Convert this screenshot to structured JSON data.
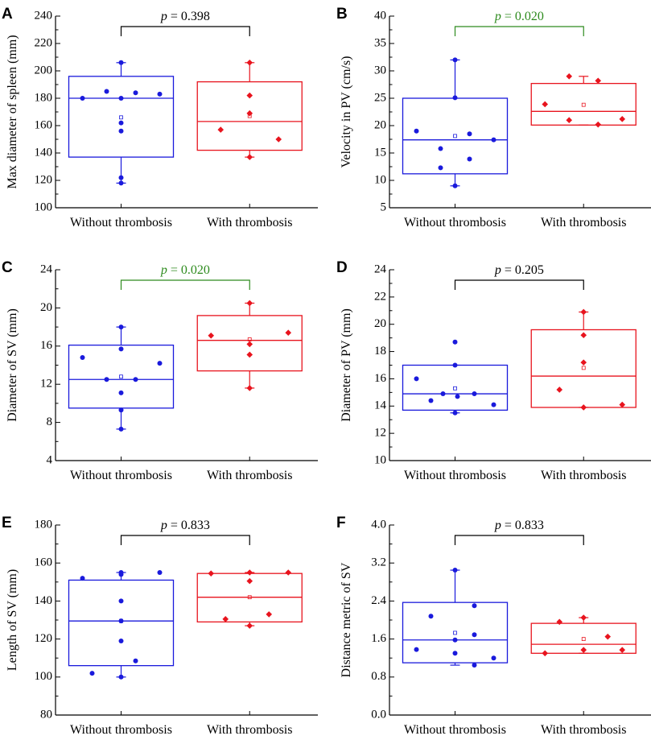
{
  "figure": {
    "colors": {
      "without": "#1a1adc",
      "with": "#e8141e",
      "sig": "#2e8b1e",
      "ns": "#000000"
    },
    "categories": [
      "Without thrombosis",
      "With thrombosis"
    ]
  },
  "chart_data": [
    {
      "panel": "A",
      "type": "box",
      "ylabel": "Max diameter of spleen (mm)",
      "ylim": [
        100,
        240
      ],
      "ticks": [
        100,
        120,
        140,
        160,
        180,
        200,
        220,
        240
      ],
      "p_text": "= 0.398",
      "significant": false,
      "groups": [
        {
          "name": "Without thrombosis",
          "box": [
            137,
            180,
            196
          ],
          "whisker": [
            118,
            206
          ],
          "mean": 166,
          "points": [
            [
              0,
              180
            ],
            [
              -0.8,
              180
            ],
            [
              -0.3,
              185
            ],
            [
              0.3,
              184
            ],
            [
              0.8,
              183
            ],
            [
              0,
              162
            ],
            [
              0,
              156
            ],
            [
              0,
              122
            ],
            [
              0,
              118
            ],
            [
              0,
              206
            ]
          ]
        },
        {
          "name": "With thrombosis",
          "box": [
            142,
            163,
            192
          ],
          "whisker": [
            137,
            206
          ],
          "mean": 167,
          "points": [
            [
              0,
              206
            ],
            [
              0,
              182
            ],
            [
              0,
              169
            ],
            [
              -0.6,
              157
            ],
            [
              0.6,
              150
            ],
            [
              0,
              137
            ]
          ]
        }
      ]
    },
    {
      "panel": "B",
      "type": "box",
      "ylabel": "Velocity in PV (cm/s)",
      "ylim": [
        5,
        40
      ],
      "ticks": [
        5,
        10,
        15,
        20,
        25,
        30,
        35,
        40
      ],
      "p_text": "= 0.020",
      "significant": true,
      "groups": [
        {
          "name": "Without thrombosis",
          "box": [
            11.2,
            17.4,
            25
          ],
          "whisker": [
            9,
            32
          ],
          "mean": 18.1,
          "points": [
            [
              0,
              32
            ],
            [
              0,
              25.1
            ],
            [
              -0.8,
              19
            ],
            [
              0.3,
              18.5
            ],
            [
              0.8,
              17.4
            ],
            [
              -0.3,
              15.8
            ],
            [
              0.3,
              13.9
            ],
            [
              -0.3,
              12.3
            ],
            [
              0,
              9
            ]
          ]
        },
        {
          "name": "With thrombosis",
          "box": [
            20.1,
            22.6,
            27.7
          ],
          "whisker": [
            20.1,
            29
          ],
          "mean": 23.8,
          "points": [
            [
              -0.3,
              29
            ],
            [
              0.3,
              28.2
            ],
            [
              -0.8,
              23.9
            ],
            [
              0.8,
              21.2
            ],
            [
              -0.3,
              21
            ],
            [
              0.3,
              20.2
            ]
          ]
        }
      ]
    },
    {
      "panel": "C",
      "type": "box",
      "ylabel": "Diameter of SV (mm)",
      "ylim": [
        4,
        24
      ],
      "ticks": [
        4,
        8,
        12,
        16,
        20,
        24
      ],
      "p_text": "= 0.020",
      "significant": true,
      "groups": [
        {
          "name": "Without thrombosis",
          "box": [
            9.5,
            12.5,
            16.1
          ],
          "whisker": [
            7.3,
            18
          ],
          "mean": 12.8,
          "points": [
            [
              0,
              18
            ],
            [
              0,
              15.7
            ],
            [
              -0.8,
              14.8
            ],
            [
              0.8,
              14.2
            ],
            [
              -0.3,
              12.5
            ],
            [
              0.3,
              12.5
            ],
            [
              0,
              11.1
            ],
            [
              0,
              9.3
            ],
            [
              0,
              7.3
            ]
          ]
        },
        {
          "name": "With thrombosis",
          "box": [
            13.4,
            16.6,
            19.2
          ],
          "whisker": [
            11.6,
            20.5
          ],
          "mean": 16.7,
          "points": [
            [
              0,
              20.5
            ],
            [
              -0.8,
              17.1
            ],
            [
              0.8,
              17.4
            ],
            [
              0,
              16.2
            ],
            [
              0,
              15.1
            ],
            [
              0,
              11.6
            ]
          ]
        }
      ]
    },
    {
      "panel": "D",
      "type": "box",
      "ylabel": "Diameter of PV (mm)",
      "ylim": [
        10,
        24
      ],
      "ticks": [
        10,
        12,
        14,
        16,
        18,
        20,
        22,
        24
      ],
      "p_text": "= 0.205",
      "significant": false,
      "groups": [
        {
          "name": "Without thrombosis",
          "box": [
            13.7,
            14.9,
            17
          ],
          "whisker": [
            13.5,
            17
          ],
          "mean": 15.3,
          "points": [
            [
              0,
              18.7
            ],
            [
              0,
              17
            ],
            [
              -0.8,
              16
            ],
            [
              -0.5,
              14.4
            ],
            [
              -0.25,
              14.9
            ],
            [
              0.05,
              14.7
            ],
            [
              0.4,
              14.9
            ],
            [
              0.8,
              14.1
            ],
            [
              0,
              13.5
            ]
          ]
        },
        {
          "name": "With thrombosis",
          "box": [
            13.9,
            16.2,
            19.6
          ],
          "whisker": [
            13.9,
            20.9
          ],
          "mean": 16.8,
          "points": [
            [
              0,
              20.9
            ],
            [
              0,
              19.2
            ],
            [
              0,
              17.2
            ],
            [
              -0.5,
              15.2
            ],
            [
              0,
              13.9
            ],
            [
              0.8,
              14.1
            ]
          ]
        }
      ]
    },
    {
      "panel": "E",
      "type": "box",
      "ylabel": "Length of SV (mm)",
      "ylim": [
        80,
        180
      ],
      "ticks": [
        80,
        100,
        120,
        140,
        160,
        180
      ],
      "p_text": "= 0.833",
      "significant": false,
      "groups": [
        {
          "name": "Without thrombosis",
          "box": [
            106,
            129.5,
            151
          ],
          "whisker": [
            100,
            155
          ],
          "mean": 129.5,
          "points": [
            [
              0,
              155
            ],
            [
              0,
              154
            ],
            [
              -0.8,
              152
            ],
            [
              0.8,
              155
            ],
            [
              0,
              140
            ],
            [
              0,
              129.5
            ],
            [
              0,
              119
            ],
            [
              0.3,
              108.5
            ],
            [
              -0.6,
              102
            ],
            [
              0,
              100
            ]
          ]
        },
        {
          "name": "With thrombosis",
          "box": [
            129,
            142,
            154.5
          ],
          "whisker": [
            127,
            155
          ],
          "mean": 142,
          "points": [
            [
              -0.8,
              154.5
            ],
            [
              0,
              155
            ],
            [
              0.8,
              155
            ],
            [
              0,
              150.5
            ],
            [
              -0.5,
              130.5
            ],
            [
              0.4,
              133
            ],
            [
              0,
              127
            ]
          ]
        }
      ]
    },
    {
      "panel": "F",
      "type": "box",
      "ylabel": "Distance metric of SV",
      "ylim": [
        0,
        4
      ],
      "ticks": [
        0.0,
        0.8,
        1.6,
        2.4,
        3.2,
        4.0
      ],
      "p_text": "= 0.833",
      "significant": false,
      "groups": [
        {
          "name": "Without thrombosis",
          "box": [
            1.1,
            1.58,
            2.37
          ],
          "whisker": [
            1.05,
            3.05
          ],
          "mean": 1.73,
          "points": [
            [
              0,
              3.05
            ],
            [
              0.4,
              2.3
            ],
            [
              -0.5,
              2.08
            ],
            [
              0.4,
              1.69
            ],
            [
              0,
              1.58
            ],
            [
              -0.8,
              1.38
            ],
            [
              0,
              1.3
            ],
            [
              0.8,
              1.2
            ],
            [
              0.4,
              1.05
            ]
          ]
        },
        {
          "name": "With thrombosis",
          "box": [
            1.3,
            1.49,
            1.93
          ],
          "whisker": [
            1.3,
            2.05
          ],
          "mean": 1.6,
          "points": [
            [
              0,
              2.05
            ],
            [
              -0.5,
              1.96
            ],
            [
              0.5,
              1.65
            ],
            [
              0,
              1.37
            ],
            [
              0.8,
              1.37
            ],
            [
              -0.8,
              1.3
            ]
          ]
        }
      ]
    }
  ]
}
